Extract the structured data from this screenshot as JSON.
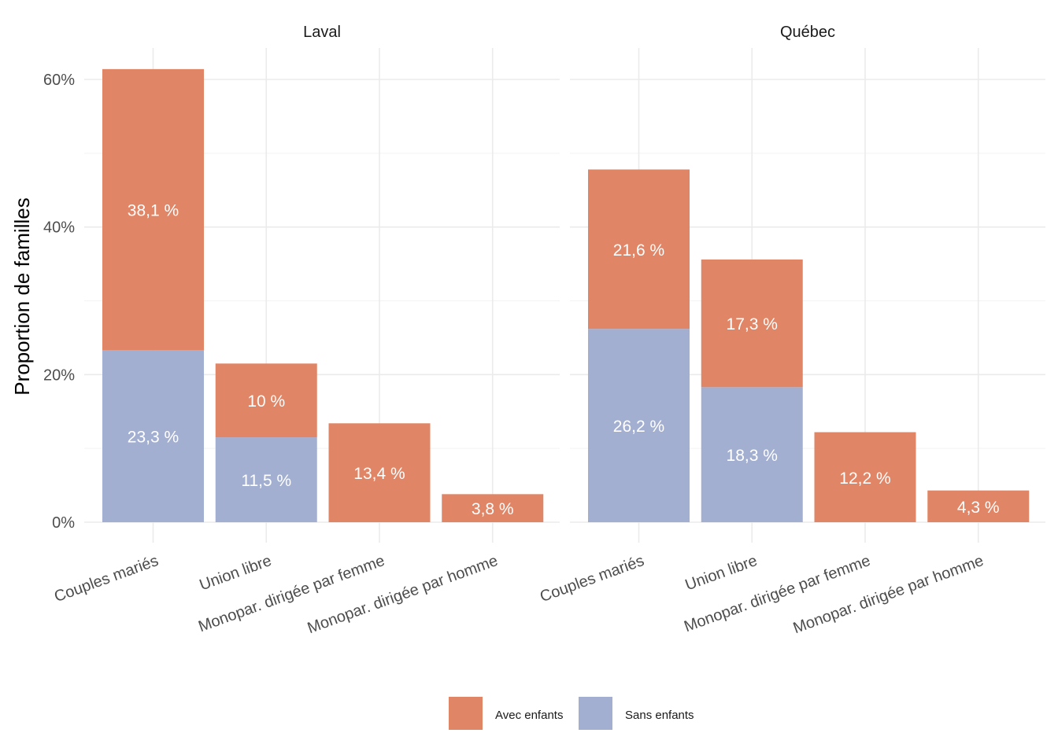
{
  "chart_data": {
    "type": "bar",
    "stacked": true,
    "ylabel": "Proportion de familles",
    "xlabel": "",
    "ylim": [
      0,
      65
    ],
    "yticks": [
      0,
      20,
      40,
      60
    ],
    "ytick_labels": [
      "0%",
      "20%",
      "40%",
      "60%"
    ],
    "grid": true,
    "legend_position": "bottom",
    "categories": [
      "Couples mariés",
      "Union libre",
      "Monopar. dirigée par femme",
      "Monopar. dirigée par homme"
    ],
    "series_meta": [
      {
        "key": "avec",
        "name": "Avec enfants",
        "color": "#E08566"
      },
      {
        "key": "sans",
        "name": "Sans enfants",
        "color": "#A3AFD0"
      }
    ],
    "facets": [
      {
        "title": "Laval",
        "series": [
          {
            "name": "Sans enfants",
            "values": [
              23.3,
              11.5,
              0,
              0
            ],
            "labels": [
              "23,3 %",
              "11,5 %",
              "",
              ""
            ]
          },
          {
            "name": "Avec enfants",
            "values": [
              38.1,
              10.0,
              13.4,
              3.8
            ],
            "labels": [
              "38,1 %",
              "10 %",
              "13,4 %",
              "3,8 %"
            ]
          }
        ]
      },
      {
        "title": "Québec",
        "series": [
          {
            "name": "Sans enfants",
            "values": [
              26.2,
              18.3,
              0,
              0
            ],
            "labels": [
              "26,2 %",
              "18,3 %",
              "",
              ""
            ]
          },
          {
            "name": "Avec enfants",
            "values": [
              21.6,
              17.3,
              12.2,
              4.3
            ],
            "labels": [
              "21,6 %",
              "17,3 %",
              "12,2 %",
              "4,3 %"
            ]
          }
        ]
      }
    ]
  }
}
